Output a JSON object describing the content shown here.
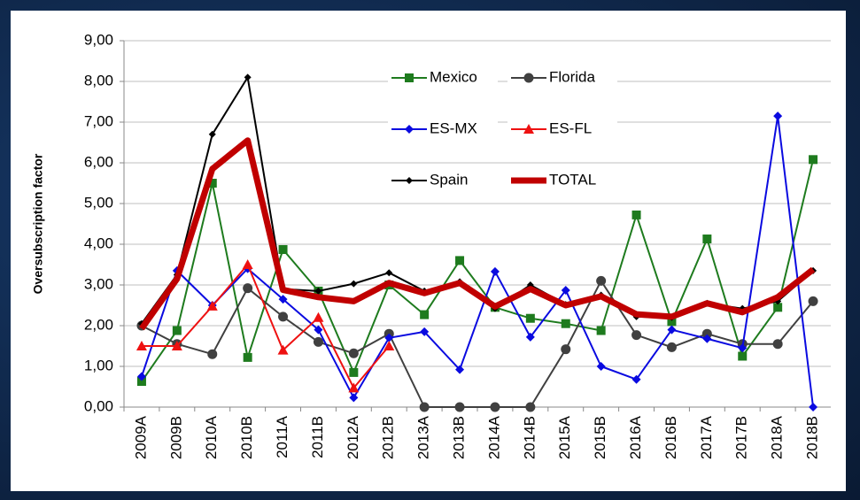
{
  "chart_data": {
    "type": "line",
    "y_label": "Oversubscription factor",
    "categories": [
      "2009A",
      "2009B",
      "2010A",
      "2010B",
      "2011A",
      "2011B",
      "2012A",
      "2012B",
      "2013A",
      "2013B",
      "2014A",
      "2014B",
      "2015A",
      "2015B",
      "2016A",
      "2016B",
      "2017A",
      "2017B",
      "2018A",
      "2018B"
    ],
    "ylim": [
      0,
      9
    ],
    "yticks": [
      {
        "value": 0,
        "label": "0,00"
      },
      {
        "value": 1,
        "label": "1,00"
      },
      {
        "value": 2,
        "label": "2,00"
      },
      {
        "value": 3,
        "label": "3,00"
      },
      {
        "value": 4,
        "label": "4,00"
      },
      {
        "value": 5,
        "label": "5,00"
      },
      {
        "value": 6,
        "label": "6,00"
      },
      {
        "value": 7,
        "label": "7,00"
      },
      {
        "value": 8,
        "label": "8,00"
      },
      {
        "value": 9,
        "label": "9,00"
      }
    ],
    "grid": true,
    "series": [
      {
        "name": "Mexico",
        "color": "#1e7b1e",
        "marker": "square",
        "values": [
          0.63,
          1.88,
          5.5,
          1.22,
          3.87,
          2.85,
          0.85,
          3.0,
          2.27,
          3.6,
          2.45,
          2.18,
          2.05,
          1.88,
          4.72,
          2.1,
          4.13,
          1.25,
          2.45,
          6.08
        ]
      },
      {
        "name": "Florida",
        "color": "#404040",
        "marker": "circle",
        "values": [
          2.0,
          1.55,
          1.3,
          2.92,
          2.22,
          1.6,
          1.32,
          1.8,
          0,
          0,
          0,
          0,
          1.42,
          3.1,
          1.77,
          1.47,
          1.8,
          1.55,
          1.55,
          2.6
        ]
      },
      {
        "name": "ES-MX",
        "color": "#0a0ae0",
        "marker": "diamond",
        "values": [
          0.75,
          3.35,
          2.5,
          3.4,
          2.65,
          1.9,
          0.23,
          1.7,
          1.85,
          0.92,
          3.33,
          1.72,
          2.87,
          1.0,
          0.68,
          1.9,
          1.68,
          1.45,
          7.15,
          0
        ]
      },
      {
        "name": "ES-FL",
        "color": "#ee1111",
        "marker": "triangle",
        "values": [
          1.5,
          1.5,
          2.48,
          3.5,
          1.4,
          2.2,
          0.47,
          1.5,
          null,
          null,
          null,
          null,
          null,
          null,
          null,
          null,
          null,
          null,
          null,
          null
        ]
      },
      {
        "name": "Spain",
        "color": "#000000",
        "marker": "small-diamond",
        "values": [
          2.05,
          3.25,
          6.7,
          8.1,
          2.9,
          2.85,
          3.03,
          3.3,
          2.85,
          3.08,
          2.42,
          3.0,
          2.52,
          2.75,
          2.22,
          2.2,
          2.55,
          2.42,
          2.6,
          3.35
        ]
      },
      {
        "name": "TOTAL",
        "color": "#c00000",
        "marker": "none",
        "width": 7,
        "values": [
          1.93,
          3.15,
          5.85,
          6.55,
          2.88,
          2.7,
          2.6,
          3.05,
          2.8,
          3.05,
          2.47,
          2.9,
          2.5,
          2.72,
          2.28,
          2.22,
          2.55,
          2.33,
          2.7,
          3.38
        ]
      }
    ]
  }
}
